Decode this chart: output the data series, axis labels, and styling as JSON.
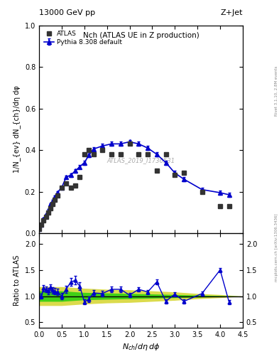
{
  "title_left": "13000 GeV pp",
  "title_right": "Z+Jet",
  "plot_title": "Nch (ATLAS UE in Z production)",
  "xlabel": "N_{ch}/dη dφ",
  "ylabel_main": "1/N_{ev} dN_{ch}/dη dφ",
  "ylabel_ratio": "Ratio to ATLAS",
  "right_label": "Rivet 3.1.10, 2.8M events",
  "right_label2": "mcplots.cern.ch [arXiv:1306.3436]",
  "watermark": "ATLAS_2019_I1736531",
  "atlas_x": [
    0.0,
    0.05,
    0.1,
    0.15,
    0.2,
    0.25,
    0.3,
    0.35,
    0.4,
    0.5,
    0.6,
    0.7,
    0.8,
    0.9,
    1.0,
    1.1,
    1.2,
    1.4,
    1.6,
    1.8,
    2.0,
    2.2,
    2.4,
    2.6,
    2.8,
    3.0,
    3.2,
    3.6,
    4.0,
    4.2
  ],
  "atlas_y": [
    0.02,
    0.04,
    0.06,
    0.08,
    0.1,
    0.12,
    0.14,
    0.16,
    0.18,
    0.22,
    0.24,
    0.22,
    0.23,
    0.27,
    0.38,
    0.4,
    0.38,
    0.4,
    0.38,
    0.38,
    0.43,
    0.38,
    0.38,
    0.3,
    0.38,
    0.28,
    0.29,
    0.2,
    0.13,
    0.13
  ],
  "pythia_x": [
    0.0,
    0.05,
    0.1,
    0.15,
    0.2,
    0.25,
    0.3,
    0.35,
    0.4,
    0.5,
    0.6,
    0.7,
    0.8,
    0.9,
    1.0,
    1.1,
    1.2,
    1.4,
    1.6,
    1.8,
    2.0,
    2.2,
    2.4,
    2.6,
    2.8,
    3.0,
    3.2,
    3.6,
    4.0,
    4.2
  ],
  "pythia_y": [
    0.02,
    0.04,
    0.07,
    0.09,
    0.11,
    0.14,
    0.155,
    0.175,
    0.195,
    0.22,
    0.27,
    0.28,
    0.3,
    0.32,
    0.34,
    0.375,
    0.405,
    0.42,
    0.43,
    0.43,
    0.44,
    0.43,
    0.41,
    0.38,
    0.34,
    0.29,
    0.26,
    0.21,
    0.195,
    0.185
  ],
  "pythia_yerr": [
    0.002,
    0.003,
    0.004,
    0.004,
    0.005,
    0.005,
    0.006,
    0.006,
    0.007,
    0.007,
    0.008,
    0.008,
    0.009,
    0.009,
    0.01,
    0.01,
    0.01,
    0.01,
    0.01,
    0.01,
    0.01,
    0.01,
    0.01,
    0.01,
    0.01,
    0.01,
    0.01,
    0.01,
    0.01,
    0.01
  ],
  "ratio_x": [
    0.0,
    0.05,
    0.1,
    0.15,
    0.2,
    0.25,
    0.3,
    0.35,
    0.4,
    0.5,
    0.6,
    0.7,
    0.8,
    0.9,
    1.0,
    1.1,
    1.2,
    1.4,
    1.6,
    1.8,
    2.0,
    2.2,
    2.4,
    2.6,
    2.8,
    3.0,
    3.2,
    3.6,
    4.0,
    4.2
  ],
  "ratio_y": [
    1.0,
    1.0,
    1.15,
    1.13,
    1.1,
    1.17,
    1.11,
    1.09,
    1.08,
    1.0,
    1.13,
    1.27,
    1.3,
    1.19,
    0.89,
    0.94,
    1.06,
    1.05,
    1.13,
    1.13,
    1.02,
    1.13,
    1.08,
    1.27,
    0.9,
    1.04,
    0.9,
    1.05,
    1.5,
    0.88
  ],
  "ratio_yerr": [
    0.05,
    0.05,
    0.06,
    0.06,
    0.06,
    0.06,
    0.06,
    0.06,
    0.06,
    0.06,
    0.07,
    0.07,
    0.08,
    0.08,
    0.05,
    0.05,
    0.05,
    0.05,
    0.05,
    0.05,
    0.04,
    0.04,
    0.04,
    0.05,
    0.04,
    0.04,
    0.04,
    0.04,
    0.04,
    0.04
  ],
  "band_x_yellow": [
    0.0,
    0.5,
    1.0,
    1.5,
    2.0,
    2.5,
    3.0,
    3.5,
    4.0,
    4.5
  ],
  "band_yellow_lo": [
    0.82,
    0.82,
    0.85,
    0.87,
    0.88,
    0.9,
    0.92,
    0.95,
    0.97,
    1.0
  ],
  "band_yellow_hi": [
    1.18,
    1.18,
    1.15,
    1.13,
    1.12,
    1.1,
    1.08,
    1.05,
    1.03,
    1.0
  ],
  "band_x_green": [
    0.0,
    0.5,
    1.0,
    1.5,
    2.0,
    2.5,
    3.0,
    3.5,
    4.0,
    4.5
  ],
  "band_green_lo": [
    0.9,
    0.9,
    0.93,
    0.94,
    0.95,
    0.96,
    0.97,
    0.98,
    0.99,
    1.0
  ],
  "band_green_hi": [
    1.1,
    1.1,
    1.07,
    1.06,
    1.05,
    1.04,
    1.03,
    1.02,
    1.01,
    1.0
  ],
  "xlim": [
    0,
    4.5
  ],
  "ylim_main": [
    0.0,
    1.0
  ],
  "ylim_ratio": [
    0.4,
    2.2
  ],
  "yticks_main": [
    0.0,
    0.2,
    0.4,
    0.6,
    0.8,
    1.0
  ],
  "yticks_ratio": [
    0.5,
    1.0,
    1.5,
    2.0
  ],
  "color_atlas": "#333333",
  "color_pythia": "#0000cc",
  "color_green": "#00cc00",
  "color_yellow": "#cccc00",
  "background": "#ffffff"
}
